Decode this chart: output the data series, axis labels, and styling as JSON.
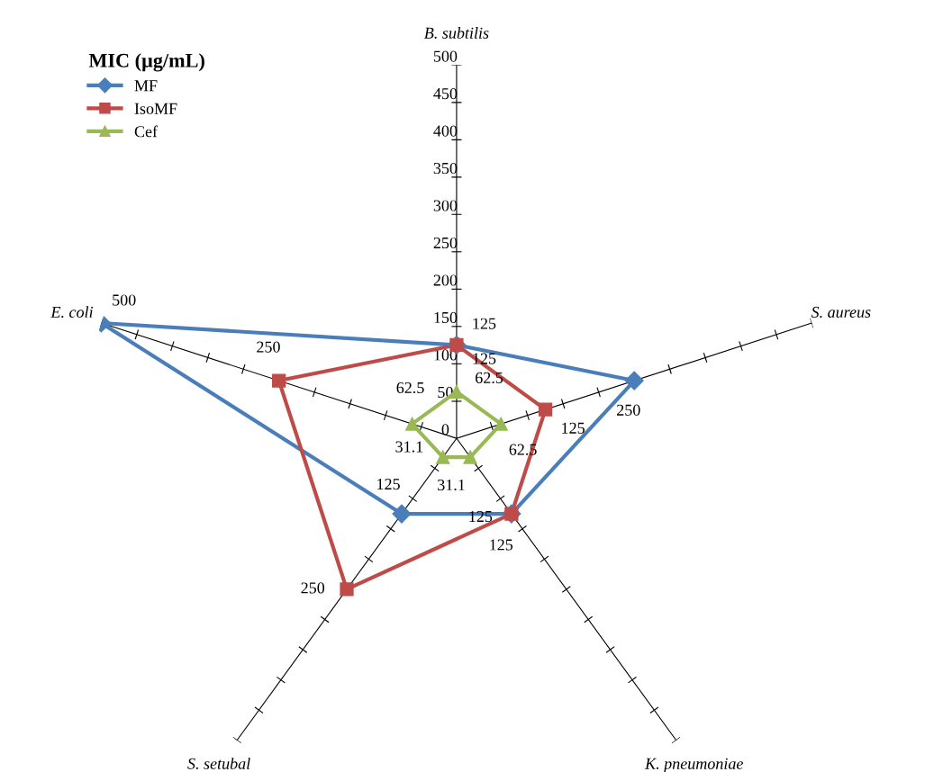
{
  "chart_data": {
    "type": "radar",
    "legend_title": "MIC (µg/mL)",
    "categories": [
      "B. subtilis",
      "S. aureus",
      "K. pneumoniae",
      "S. setubal",
      "E. coli"
    ],
    "series": [
      {
        "name": "MF",
        "color": "#4a7ebb",
        "marker": "diamond",
        "values": [
          125,
          250,
          125,
          125,
          500
        ]
      },
      {
        "name": "IsoMF",
        "color": "#be4b48",
        "marker": "square",
        "values": [
          125,
          125,
          125,
          250,
          250
        ]
      },
      {
        "name": "Cef",
        "color": "#98b954",
        "marker": "triangle",
        "values": [
          62.5,
          62.5,
          31.1,
          31.1,
          62.5
        ]
      }
    ],
    "ylim": [
      0,
      500
    ],
    "yticks": [
      0,
      50,
      100,
      150,
      200,
      250,
      300,
      350,
      400,
      450,
      500
    ],
    "grid": false,
    "legend": "top left",
    "data_labels": true,
    "line_style": "solid"
  }
}
